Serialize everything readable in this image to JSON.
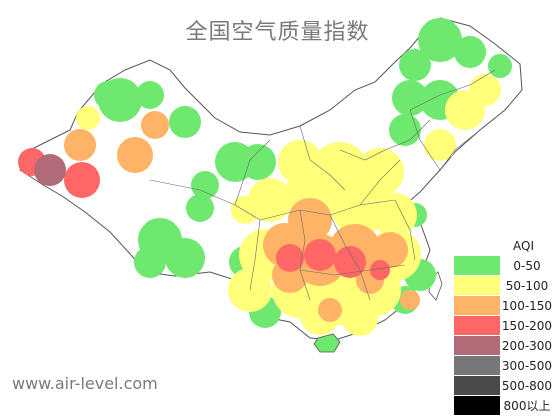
{
  "title": "全国空气质量指数",
  "source": "www.air-level.com",
  "legend": {
    "title": "AQI",
    "items": [
      {
        "label": "0-50",
        "color": "#6ee86e"
      },
      {
        "label": "50-100",
        "color": "#ffff7a"
      },
      {
        "label": "100-150",
        "color": "#ffb366"
      },
      {
        "label": "150-200",
        "color": "#ff6666"
      },
      {
        "label": "200-300",
        "color": "#b06a78"
      },
      {
        "label": "300-500",
        "color": "#777777"
      },
      {
        "label": "500-800",
        "color": "#4a4a4a"
      },
      {
        "label": "800以上",
        "color": "#000000"
      }
    ]
  },
  "colors": {
    "good": "#6ee86e",
    "moderate": "#ffff7a",
    "sensitive": "#ffb366",
    "unhealthy": "#ff6666",
    "very_unhealthy": "#b06a78",
    "border": "#555555"
  }
}
